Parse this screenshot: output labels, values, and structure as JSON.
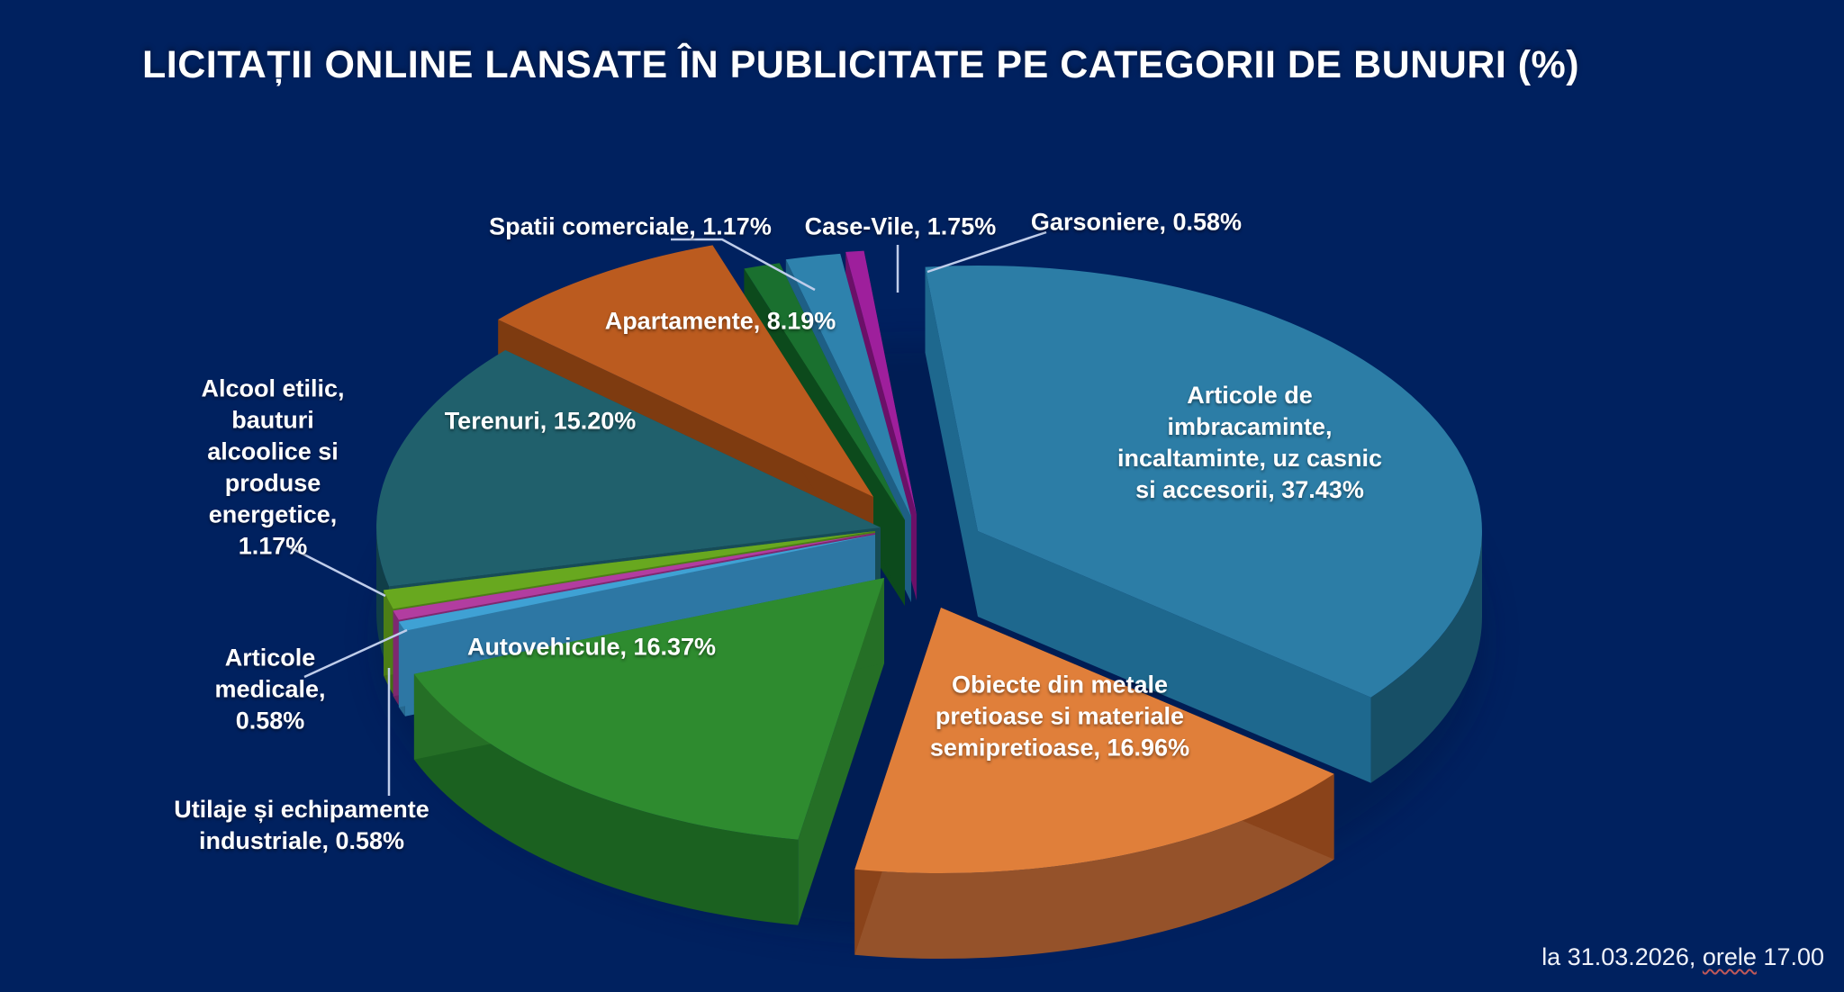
{
  "title": "LICITAȚII ONLINE LANSATE ÎN PUBLICITATE PE CATEGORII DE BUNURI (%)",
  "footer": {
    "text_before": "la 31.03.2026,",
    "underlined_word": "orele",
    "text_after": "17.00"
  },
  "chart_data": {
    "type": "pie",
    "is_3d": true,
    "exploded": true,
    "unit": "%",
    "background_color": "#00215F",
    "leader_line_color": "#BFCDEA",
    "title": "LICITAȚII ONLINE LANSATE ÎN PUBLICITATE PE CATEGORII DE BUNURI (%)",
    "order_note": "slices listed clockwise starting at 12 o'clock",
    "slices": [
      {
        "label": "Articole de imbracaminte, incaltaminte, uz casnic si accesorii",
        "value": 37.43,
        "display": "Articole de\nimbracaminte,\nincaltaminte, uz casnic\nsi accesorii, 37.43%",
        "colors": {
          "top": "#2C7DA6",
          "side": "#1E688E",
          "rim": "#174F66"
        }
      },
      {
        "label": "Obiecte din metale pretioase si materiale semipretioase",
        "value": 16.96,
        "display": "Obiecte din metale\npretioase si materiale\nsemipretioase, 16.96%",
        "colors": {
          "top": "#E07F3A",
          "side": "#8A431A",
          "rim": "#95522A"
        }
      },
      {
        "label": "Autovehicule",
        "value": 16.37,
        "display": "Autovehicule, 16.37%",
        "colors": {
          "top": "#2E8B2F",
          "side": "#256F26",
          "rim": "#1B6120"
        }
      },
      {
        "label": "Utilaje și echipamente industriale",
        "value": 0.58,
        "display": "Utilaje și echipamente\nindustriale, 0.58%",
        "colors": {
          "top": "#3FA1D4",
          "side": "#2D77A4",
          "rim": "#26688F"
        }
      },
      {
        "label": "Articole medicale",
        "value": 0.58,
        "display": "Articole\nmedicale,\n0.58%",
        "colors": {
          "top": "#B23DA0",
          "side": "#7E2870",
          "rim": "#6E2261"
        }
      },
      {
        "label": "Alcool etilic, bauturi alcoolice si produse energetice",
        "value": 1.17,
        "display": "Alcool etilic,\nbauturi\nalcoolice si\nproduse\nenergetice,\n1.17%",
        "colors": {
          "top": "#68A81F",
          "side": "#4C7E16",
          "rim": "#426E13"
        }
      },
      {
        "label": "Terenuri",
        "value": 15.2,
        "display": "Terenuri, 15.20%",
        "colors": {
          "top": "#20606C",
          "side": "#174C56",
          "rim": "#103E48"
        }
      },
      {
        "label": "Apartamente",
        "value": 8.19,
        "display": "Apartamente, 8.19%",
        "colors": {
          "top": "#BB5B1F",
          "side": "#7E3B10",
          "rim": "#6F3209"
        }
      },
      {
        "label": "Spatii comerciale",
        "value": 1.17,
        "display": "Spatii comerciale, 1.17%",
        "colors": {
          "top": "#1A702F",
          "side": "#0C4A1C",
          "rim": "#0C4A1C"
        }
      },
      {
        "label": "Case-Vile",
        "value": 1.75,
        "display": "Case-Vile, 1.75%",
        "colors": {
          "top": "#2E82AD",
          "side": "#1E5F85",
          "rim": "#1B5678"
        }
      },
      {
        "label": "Garsoniere",
        "value": 0.58,
        "display": "Garsoniere, 0.58%",
        "colors": {
          "top": "#9E1F9C",
          "side": "#6B1068",
          "rim": "#5E0E5C"
        }
      }
    ]
  }
}
